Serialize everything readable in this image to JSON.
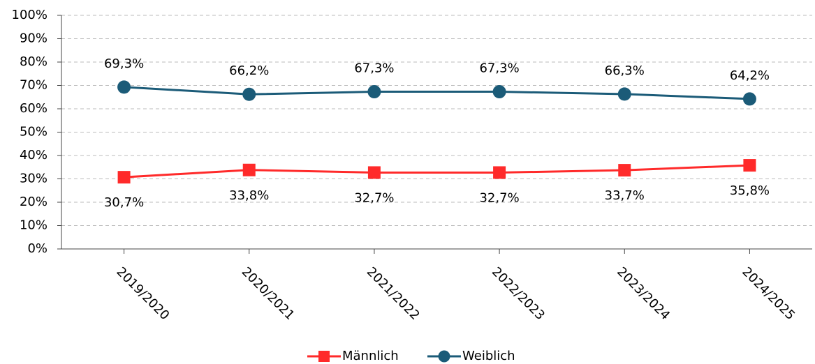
{
  "chart_data": {
    "type": "line",
    "categories": [
      "2019/2020",
      "2020/2021",
      "2021/2022",
      "2022/2023",
      "2023/2024",
      "2024/2025"
    ],
    "series": [
      {
        "name": "Männlich",
        "color": "#ff2a2a",
        "marker": "square",
        "values": [
          30.7,
          33.8,
          32.7,
          32.7,
          33.7,
          35.8
        ],
        "value_labels": [
          "30,7%",
          "33,8%",
          "32,7%",
          "32,7%",
          "33,7%",
          "35,8%"
        ]
      },
      {
        "name": "Weiblich",
        "color": "#1b5b78",
        "marker": "circle",
        "values": [
          69.3,
          66.2,
          67.3,
          67.3,
          66.3,
          64.2
        ],
        "value_labels": [
          "69,3%",
          "66,2%",
          "67,3%",
          "67,3%",
          "66,3%",
          "64,2%"
        ]
      }
    ],
    "ylim": [
      0,
      100
    ],
    "yticks": [
      {
        "value": 0,
        "label": "0%"
      },
      {
        "value": 10,
        "label": "10%"
      },
      {
        "value": 20,
        "label": "20%"
      },
      {
        "value": 30,
        "label": "30%"
      },
      {
        "value": 40,
        "label": "40%"
      },
      {
        "value": 50,
        "label": "50%"
      },
      {
        "value": 60,
        "label": "60%"
      },
      {
        "value": 70,
        "label": "70%"
      },
      {
        "value": 80,
        "label": "80%"
      },
      {
        "value": 90,
        "label": "90%"
      },
      {
        "value": 100,
        "label": "100%"
      }
    ],
    "grid": true,
    "legend": "bottom"
  }
}
